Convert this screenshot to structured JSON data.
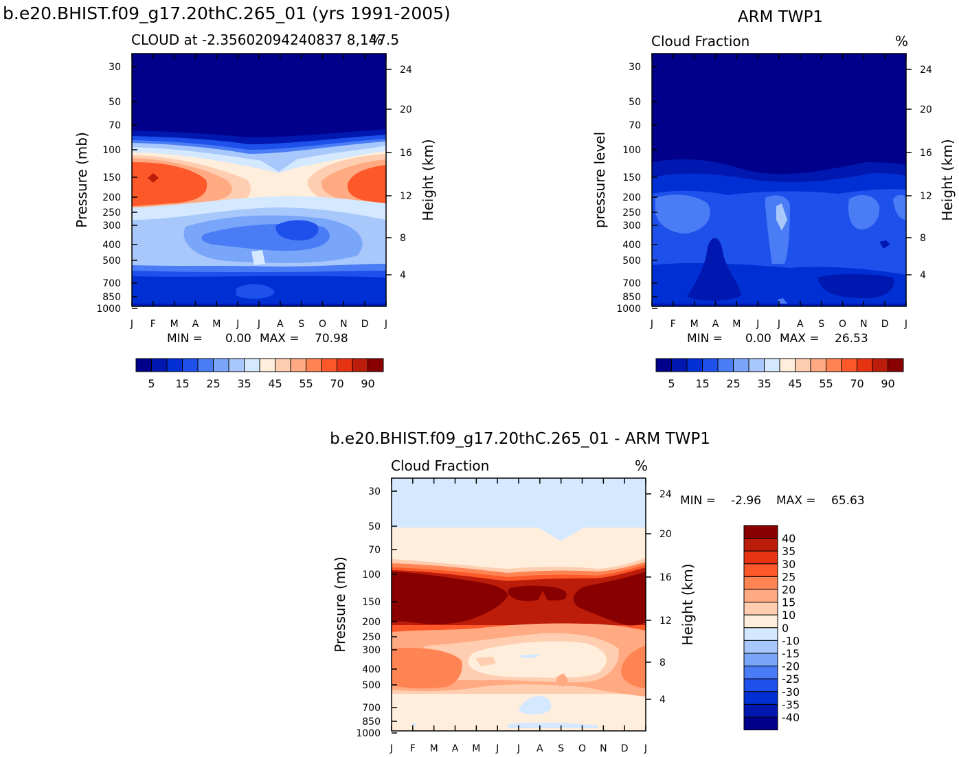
{
  "chart_data": [
    {
      "type": "heatmap",
      "panel": "model",
      "main_title": "b.e20.BHIST.f09_g17.20thC.265_01 (yrs 1991-2005)",
      "left_title": "CLOUD at -2.35602094240837 8,147.5",
      "units": "%",
      "ylabel": "Pressure (mb)",
      "ylabel_right": "Height (km)",
      "x_ticks": [
        "J",
        "F",
        "M",
        "A",
        "M",
        "J",
        "J",
        "A",
        "S",
        "O",
        "N",
        "D",
        "J"
      ],
      "y_ticks": [
        "30",
        "50",
        "70",
        "100",
        "150",
        "200",
        "250",
        "300",
        "400",
        "500",
        "700",
        "850",
        "1000"
      ],
      "y_right_ticks": [
        "24",
        "20",
        "16",
        "12",
        "8",
        "4"
      ],
      "min_label": "MIN =",
      "min_value": "0.00",
      "max_label": "MAX =",
      "max_value": "70.98",
      "colorbar_labels": [
        "5",
        "15",
        "25",
        "35",
        "45",
        "55",
        "70",
        "90"
      ],
      "colors": [
        "#00008a",
        "#0018b0",
        "#0030d4",
        "#1e50ec",
        "#4a7cf5",
        "#7aa6fa",
        "#a8c8fc",
        "#d4e8ff",
        "#ffeedc",
        "#ffcdb0",
        "#ffaa82",
        "#ff8454",
        "#fc582a",
        "#e63412",
        "#bc1c0a",
        "#880000"
      ]
    },
    {
      "type": "heatmap",
      "panel": "observation",
      "main_title": "ARM TWP1",
      "left_title": "Cloud Fraction",
      "units": "%",
      "ylabel": "pressure level",
      "ylabel_right": "Height (km)",
      "x_ticks": [
        "J",
        "F",
        "M",
        "A",
        "M",
        "J",
        "J",
        "A",
        "S",
        "O",
        "N",
        "D",
        "J"
      ],
      "y_ticks": [
        "30",
        "50",
        "70",
        "100",
        "150",
        "200",
        "250",
        "300",
        "400",
        "500",
        "700",
        "850",
        "1000"
      ],
      "y_right_ticks": [
        "24",
        "20",
        "16",
        "12",
        "8",
        "4"
      ],
      "min_label": "MIN =",
      "min_value": "0.00",
      "max_label": "MAX =",
      "max_value": "26.53",
      "colorbar_labels": [
        "5",
        "15",
        "25",
        "35",
        "45",
        "55",
        "70",
        "90"
      ]
    },
    {
      "type": "heatmap",
      "panel": "difference",
      "main_title": "b.e20.BHIST.f09_g17.20thC.265_01 - ARM TWP1",
      "left_title": "Cloud Fraction",
      "units": "%",
      "ylabel": "Pressure (mb)",
      "ylabel_right": "Height (km)",
      "x_ticks": [
        "J",
        "F",
        "M",
        "A",
        "M",
        "J",
        "J",
        "A",
        "S",
        "O",
        "N",
        "D",
        "J"
      ],
      "y_ticks": [
        "30",
        "50",
        "70",
        "100",
        "150",
        "200",
        "250",
        "300",
        "400",
        "500",
        "700",
        "850",
        "1000"
      ],
      "y_right_ticks": [
        "24",
        "20",
        "16",
        "12",
        "8",
        "4"
      ],
      "min_label": "MIN =",
      "min_value": "-2.96",
      "max_label": "MAX =",
      "max_value": "65.63",
      "colorbar_labels": [
        "40",
        "35",
        "30",
        "25",
        "20",
        "15",
        "10",
        "0",
        "-10",
        "-15",
        "-20",
        "-25",
        "-30",
        "-35",
        "-40"
      ],
      "colors": [
        "#880000",
        "#bc1c0a",
        "#e63412",
        "#fc582a",
        "#ff8454",
        "#ffaa82",
        "#ffcdb0",
        "#ffeedc",
        "#d4e8ff",
        "#a8c8fc",
        "#7aa6fa",
        "#4a7cf5",
        "#1e50ec",
        "#0030d4",
        "#0018b0",
        "#00008a"
      ]
    }
  ]
}
